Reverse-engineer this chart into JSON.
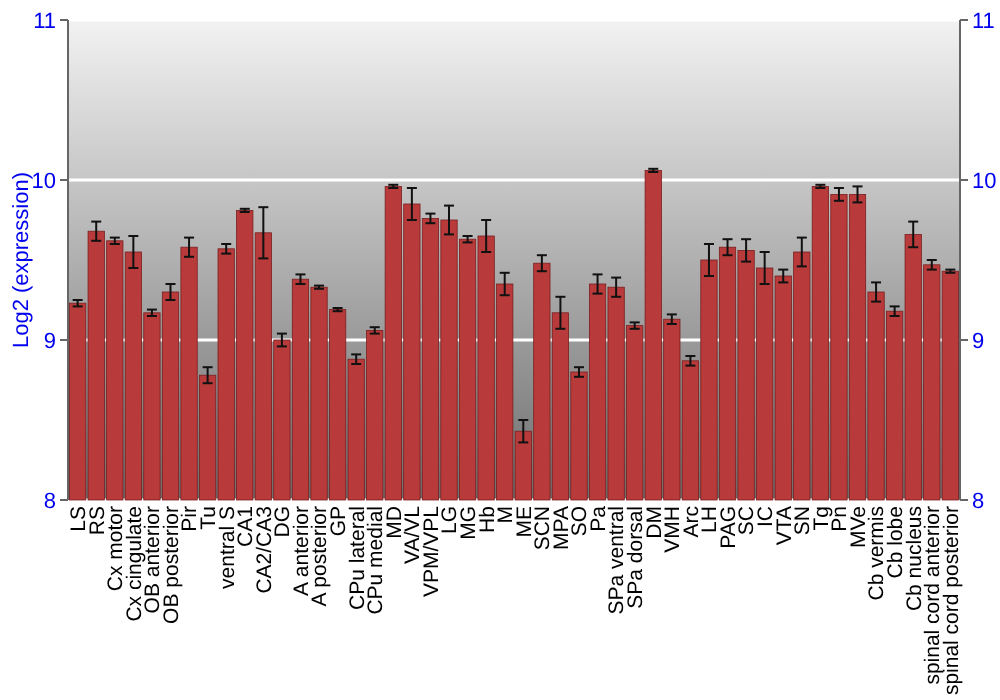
{
  "chart_data": {
    "type": "bar",
    "ylabel": "Log2 (expression)",
    "categories": [
      "LS",
      "RS",
      "Cx motor",
      "Cx cingulate",
      "OB anterior",
      "OB posterior",
      "Pir",
      "Tu",
      "ventral S",
      "CA1",
      "CA2/CA3",
      "DG",
      "A anterior",
      "A posterior",
      "GP",
      "CPu lateral",
      "CPu medial",
      "MD",
      "VA/VL",
      "VPM/VPL",
      "LG",
      "MG",
      "Hb",
      "M",
      "ME",
      "SCN",
      "MPA",
      "SO",
      "Pa",
      "SPa ventral",
      "SPa dorsal",
      "DM",
      "VMH",
      "Arc",
      "LH",
      "PAG",
      "SC",
      "IC",
      "VTA",
      "SN",
      "Tg",
      "Pn",
      "MVe",
      "Cb vermis",
      "Cb lobe",
      "Cb nucleus",
      "spinal cord anterior",
      "spinal cord posterior"
    ],
    "values": [
      9.23,
      9.68,
      9.62,
      9.55,
      9.17,
      9.3,
      9.58,
      8.78,
      9.57,
      9.81,
      9.67,
      9.0,
      9.38,
      9.33,
      9.19,
      8.88,
      9.06,
      9.96,
      9.85,
      9.76,
      9.75,
      9.63,
      9.65,
      9.35,
      8.43,
      9.48,
      9.17,
      8.8,
      9.35,
      9.33,
      9.09,
      10.06,
      9.13,
      8.87,
      9.5,
      9.58,
      9.56,
      9.45,
      9.4,
      9.55,
      9.96,
      9.91,
      9.91,
      9.3,
      9.18,
      9.66,
      9.47,
      9.43
    ],
    "errors": [
      0.02,
      0.06,
      0.02,
      0.1,
      0.02,
      0.05,
      0.06,
      0.05,
      0.03,
      0.01,
      0.16,
      0.04,
      0.03,
      0.01,
      0.01,
      0.03,
      0.02,
      0.01,
      0.1,
      0.03,
      0.09,
      0.02,
      0.1,
      0.07,
      0.07,
      0.05,
      0.1,
      0.03,
      0.06,
      0.06,
      0.02,
      0.01,
      0.03,
      0.03,
      0.1,
      0.05,
      0.07,
      0.1,
      0.04,
      0.09,
      0.01,
      0.04,
      0.05,
      0.06,
      0.03,
      0.08,
      0.03,
      0.01
    ],
    "color": "#b83a3a",
    "ylim": [
      8,
      11
    ],
    "yticks": [
      8,
      9,
      10,
      11
    ],
    "y2lim": [
      8,
      11
    ],
    "y2ticks": [
      8,
      9,
      10,
      11
    ],
    "grid": "y"
  }
}
